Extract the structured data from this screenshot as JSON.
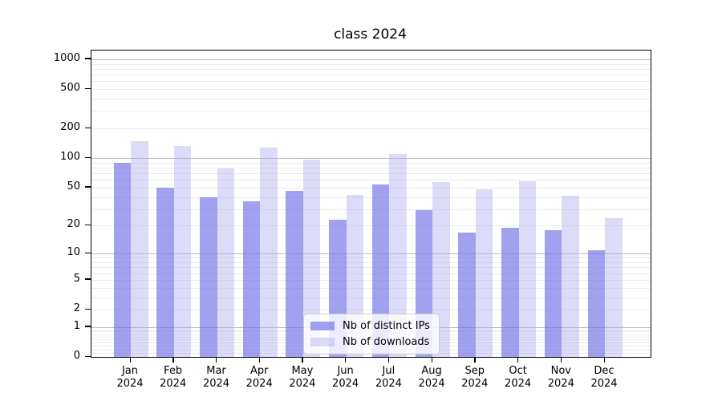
{
  "chart_data": {
    "type": "bar",
    "title": "class 2024",
    "y_scale": "log10(1+v)",
    "months": [
      "Jan",
      "Feb",
      "Mar",
      "Apr",
      "May",
      "Jun",
      "Jul",
      "Aug",
      "Sep",
      "Oct",
      "Nov",
      "Dec"
    ],
    "year": "2024",
    "series": [
      {
        "name": "Nb of distinct IPs",
        "color": "rgba(110,110,232,0.65)",
        "values": [
          90,
          50,
          40,
          36,
          46,
          23,
          54,
          29,
          17,
          19,
          18,
          11
        ]
      },
      {
        "name": "Nb of downloads",
        "color": "rgba(172,172,241,0.42)",
        "values": [
          150,
          134,
          78,
          128,
          97,
          42,
          110,
          57,
          48,
          58,
          41,
          24
        ]
      }
    ],
    "yticks": [
      0,
      1,
      2,
      5,
      10,
      20,
      50,
      100,
      200,
      500,
      1000
    ],
    "ylim": [
      0,
      1230
    ],
    "grid": {
      "major_color": "#bcbcbc",
      "minor_color": "#ebebeb",
      "orientation": "horizontal"
    },
    "legend_position": "lower-center",
    "axis_color": "#000000"
  }
}
